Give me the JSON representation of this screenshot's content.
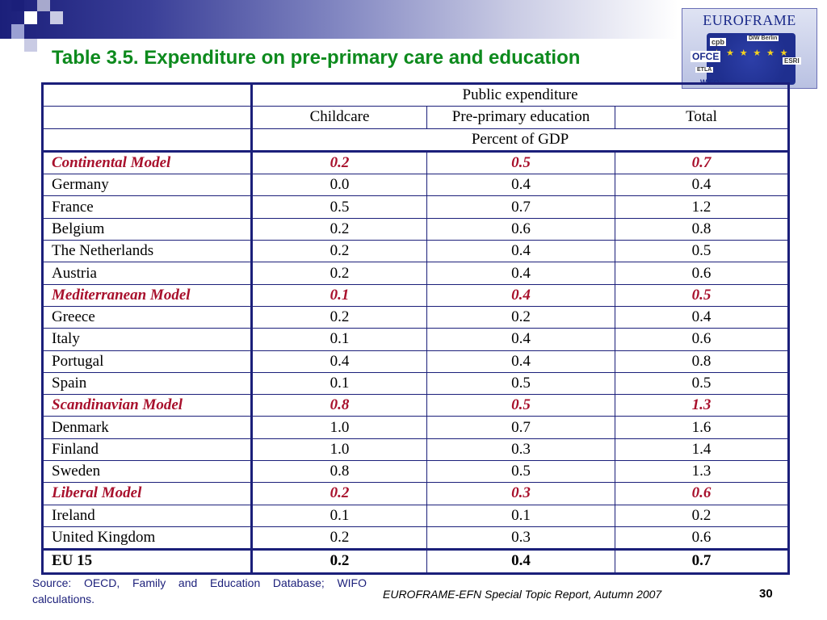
{
  "title": "Table 3.5. Expenditure on pre-primary care and education",
  "logo": {
    "title": "EUROFRAME",
    "partners": [
      "cpb",
      "DIW Berlin",
      "OFCE",
      "ETLA",
      "ESRI",
      "WIFO",
      "PROMETEIA",
      "ifw"
    ]
  },
  "table": {
    "header_group": "Public expenditure",
    "columns": [
      "Childcare",
      "Pre-primary education",
      "Total"
    ],
    "unit": "Percent of GDP",
    "rows": [
      {
        "label": "Continental Model",
        "childcare": "0.2",
        "preprimary": "0.5",
        "total": "0.7",
        "type": "model"
      },
      {
        "label": "Germany",
        "childcare": "0.0",
        "preprimary": "0.4",
        "total": "0.4",
        "type": "country"
      },
      {
        "label": "France",
        "childcare": "0.5",
        "preprimary": "0.7",
        "total": "1.2",
        "type": "country"
      },
      {
        "label": "Belgium",
        "childcare": "0.2",
        "preprimary": "0.6",
        "total": "0.8",
        "type": "country"
      },
      {
        "label": "The Netherlands",
        "childcare": "0.2",
        "preprimary": "0.4",
        "total": "0.5",
        "type": "country"
      },
      {
        "label": "Austria",
        "childcare": "0.2",
        "preprimary": "0.4",
        "total": "0.6",
        "type": "country"
      },
      {
        "label": "Mediterranean Model",
        "childcare": "0.1",
        "preprimary": "0.4",
        "total": "0.5",
        "type": "model"
      },
      {
        "label": "Greece",
        "childcare": "0.2",
        "preprimary": "0.2",
        "total": "0.4",
        "type": "country"
      },
      {
        "label": "Italy",
        "childcare": "0.1",
        "preprimary": "0.4",
        "total": "0.6",
        "type": "country"
      },
      {
        "label": "Portugal",
        "childcare": "0.4",
        "preprimary": "0.4",
        "total": "0.8",
        "type": "country"
      },
      {
        "label": "Spain",
        "childcare": "0.1",
        "preprimary": "0.5",
        "total": "0.5",
        "type": "country"
      },
      {
        "label": "Scandinavian Model",
        "childcare": "0.8",
        "preprimary": "0.5",
        "total": "1.3",
        "type": "model"
      },
      {
        "label": "Denmark",
        "childcare": "1.0",
        "preprimary": "0.7",
        "total": "1.6",
        "type": "country"
      },
      {
        "label": "Finland",
        "childcare": "1.0",
        "preprimary": "0.3",
        "total": "1.4",
        "type": "country"
      },
      {
        "label": "Sweden",
        "childcare": "0.8",
        "preprimary": "0.5",
        "total": "1.3",
        "type": "country"
      },
      {
        "label": "Liberal Model",
        "childcare": "0.2",
        "preprimary": "0.3",
        "total": "0.6",
        "type": "model"
      },
      {
        "label": "Ireland",
        "childcare": "0.1",
        "preprimary": "0.1",
        "total": "0.2",
        "type": "country"
      },
      {
        "label": "United Kingdom",
        "childcare": "0.2",
        "preprimary": "0.3",
        "total": "0.6",
        "type": "country"
      },
      {
        "label": "EU 15",
        "childcare": "0.2",
        "preprimary": "0.4",
        "total": "0.7",
        "type": "eu"
      }
    ]
  },
  "source": "Source: OECD, Family and Education Database; WIFO calculations.",
  "footer": "EUROFRAME-EFN Special Topic Report, Autumn 2007",
  "page_number": "30",
  "colors": {
    "title": "#0d8a1d",
    "model_rows": "#a8102c",
    "border": "#1b1f7a",
    "source_text": "#1b1f7a"
  }
}
